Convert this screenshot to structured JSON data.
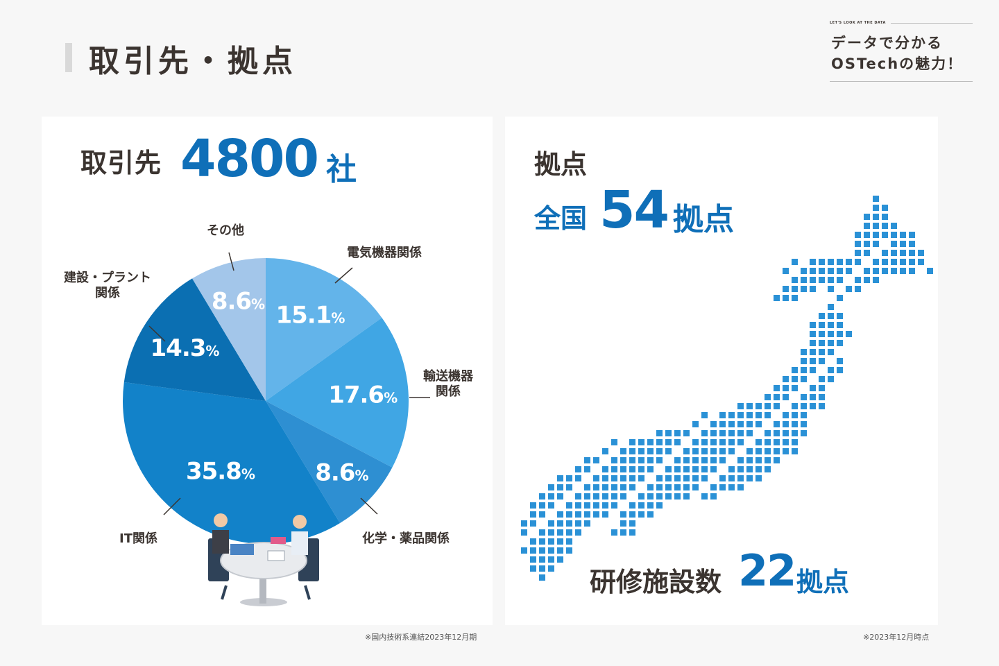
{
  "page": {
    "title": "取引先・拠点"
  },
  "badge": {
    "en": "LET'S LOOK AT THE DATA",
    "line1": "データで分かる",
    "line2": "OSTechの魅力！"
  },
  "partners": {
    "label": "取引先",
    "value": "4800",
    "unit": "社",
    "note": "※国内技術系連結2023年12月期"
  },
  "bases": {
    "label": "拠点",
    "prefix": "全国",
    "value": "54",
    "unit": "拠点",
    "training_label": "研修施設数",
    "training_value": "22",
    "training_unit": "拠点",
    "note": "※2023年12月時点"
  },
  "colors": {
    "accent": "#0f6fb8",
    "slices": [
      "#63b4ea",
      "#40a6e4",
      "#2e8fd2",
      "#1282c9",
      "#0b6fb2",
      "#a3c6ea"
    ],
    "map": "#2a91d6"
  },
  "chart_data": {
    "type": "pie",
    "unit": "%",
    "slices": [
      {
        "label": "電気機器関係",
        "value": 15.1
      },
      {
        "label": "輸送機器関係",
        "value": 17.6
      },
      {
        "label": "化学・薬品関係",
        "value": 8.6
      },
      {
        "label": "IT関係",
        "value": 35.8
      },
      {
        "label": "建設・プラント関係",
        "value": 14.3
      },
      {
        "label": "その他",
        "value": 8.6
      }
    ]
  }
}
